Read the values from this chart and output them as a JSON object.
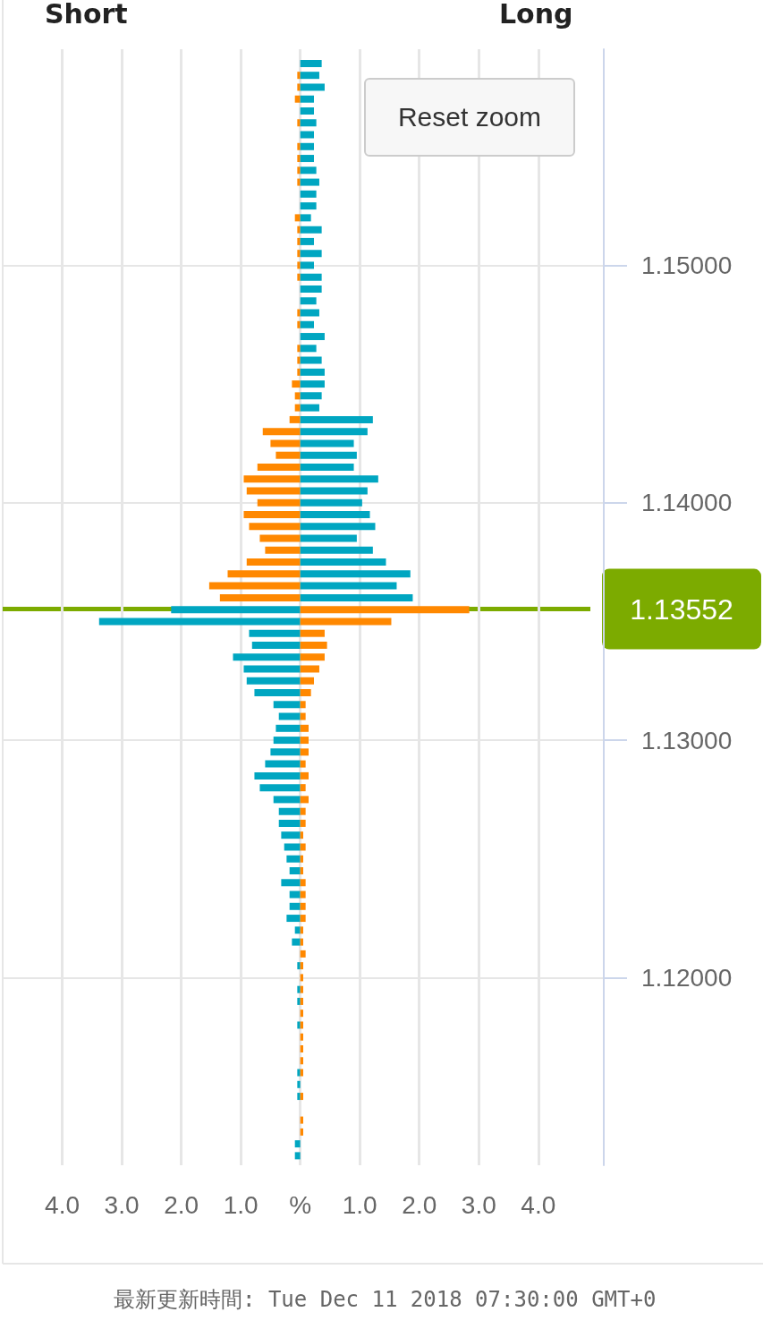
{
  "chart_data": {
    "type": "bar",
    "orientation": "horizontal",
    "grid": true,
    "stacked": true,
    "x": [
      1.1585,
      1.158,
      1.1575,
      1.157,
      1.1565,
      1.156,
      1.1555,
      1.155,
      1.1545,
      1.154,
      1.1535,
      1.153,
      1.1525,
      1.152,
      1.1515,
      1.151,
      1.1505,
      1.15,
      1.1495,
      1.149,
      1.1485,
      1.148,
      1.1475,
      1.147,
      1.1465,
      1.146,
      1.1455,
      1.145,
      1.1445,
      1.144,
      1.1435,
      1.143,
      1.1425,
      1.142,
      1.1415,
      1.141,
      1.1405,
      1.14,
      1.1395,
      1.139,
      1.1385,
      1.138,
      1.1375,
      1.137,
      1.1365,
      1.136,
      1.1355,
      1.135,
      1.1345,
      1.134,
      1.1335,
      1.133,
      1.1325,
      1.132,
      1.1315,
      1.131,
      1.1305,
      1.13,
      1.1295,
      1.129,
      1.1285,
      1.128,
      1.1275,
      1.127,
      1.1265,
      1.126,
      1.1255,
      1.125,
      1.1245,
      1.124,
      1.1235,
      1.123,
      1.1225,
      1.122,
      1.1215,
      1.121,
      1.1205,
      1.12,
      1.1195,
      1.119,
      1.1185,
      1.118,
      1.1175,
      1.117,
      1.1165,
      1.116,
      1.1155,
      1.115,
      1.1145,
      1.114,
      1.1135,
      1.113,
      1.1125
    ],
    "series": [
      {
        "values": [
          0,
          -0.05,
          -0.05,
          -0.09,
          0,
          -0.05,
          0,
          -0.05,
          -0.05,
          -0.05,
          -0.05,
          0,
          0,
          -0.09,
          -0.05,
          -0.05,
          -0.05,
          -0.05,
          -0.05,
          0,
          0,
          -0.05,
          -0.05,
          0,
          -0.05,
          -0.05,
          -0.05,
          -0.14,
          -0.09,
          -0.09,
          -0.18,
          -0.63,
          -0.5,
          -0.41,
          -0.72,
          -0.95,
          -0.9,
          -0.72,
          -0.95,
          -0.86,
          -0.68,
          -0.59,
          -0.9,
          -1.22,
          -1.53,
          -1.35,
          -2.17,
          -3.38,
          -0.86,
          -0.81,
          -1.13,
          -0.95,
          -0.9,
          -0.77,
          -0.45,
          -0.36,
          -0.41,
          -0.45,
          -0.5,
          -0.59,
          -0.77,
          -0.68,
          -0.45,
          -0.36,
          -0.36,
          -0.32,
          -0.27,
          -0.23,
          -0.18,
          -0.32,
          -0.18,
          -0.18,
          -0.23,
          -0.09,
          -0.14,
          0,
          -0.05,
          0,
          -0.05,
          -0.05,
          0,
          -0.05,
          0,
          0,
          0,
          -0.05,
          -0.05,
          -0.05,
          0,
          0,
          0,
          -0.09,
          -0.09
        ],
        "colors": [
          "#ff8800",
          "#ff8800",
          "#ff8800",
          "#ff8800",
          "#ff8800",
          "#ff8800",
          "#ff8800",
          "#ff8800",
          "#ff8800",
          "#ff8800",
          "#ff8800",
          "#ff8800",
          "#ff8800",
          "#ff8800",
          "#ff8800",
          "#ff8800",
          "#ff8800",
          "#ff8800",
          "#ff8800",
          "#ff8800",
          "#ff8800",
          "#ff8800",
          "#ff8800",
          "#ff8800",
          "#ff8800",
          "#ff8800",
          "#ff8800",
          "#ff8800",
          "#ff8800",
          "#ff8800",
          "#ff8800",
          "#ff8800",
          "#ff8800",
          "#ff8800",
          "#ff8800",
          "#ff8800",
          "#ff8800",
          "#ff8800",
          "#ff8800",
          "#ff8800",
          "#ff8800",
          "#ff8800",
          "#ff8800",
          "#ff8800",
          "#ff8800",
          "#ff8800",
          "#00a6c1",
          "#00a6c1",
          "#00a6c1",
          "#00a6c1",
          "#00a6c1",
          "#00a6c1",
          "#00a6c1",
          "#00a6c1",
          "#00a6c1",
          "#00a6c1",
          "#00a6c1",
          "#00a6c1",
          "#00a6c1",
          "#00a6c1",
          "#00a6c1",
          "#00a6c1",
          "#00a6c1",
          "#00a6c1",
          "#00a6c1",
          "#00a6c1",
          "#00a6c1",
          "#00a6c1",
          "#00a6c1",
          "#00a6c1",
          "#00a6c1",
          "#00a6c1",
          "#00a6c1",
          "#00a6c1",
          "#00a6c1",
          "#00a6c1",
          "#00a6c1",
          "#00a6c1",
          "#00a6c1",
          "#00a6c1",
          "#00a6c1",
          "#00a6c1",
          "#00a6c1",
          "#00a6c1",
          "#00a6c1",
          "#00a6c1",
          "#00a6c1",
          "#00a6c1",
          "#00a6c1",
          "#00a6c1",
          "#00a6c1",
          "#00a6c1",
          "#00a6c1"
        ]
      },
      {
        "values": [
          0.36,
          0.32,
          0.41,
          0.23,
          0.23,
          0.27,
          0.23,
          0.23,
          0.23,
          0.27,
          0.32,
          0.27,
          0.27,
          0.18,
          0.36,
          0.23,
          0.36,
          0.23,
          0.36,
          0.36,
          0.27,
          0.32,
          0.23,
          0.41,
          0.27,
          0.36,
          0.41,
          0.41,
          0.36,
          0.32,
          1.22,
          1.13,
          0.9,
          0.95,
          0.9,
          1.31,
          1.13,
          1.04,
          1.17,
          1.26,
          0.95,
          1.22,
          1.44,
          1.85,
          1.62,
          1.89,
          2.84,
          1.53,
          0.41,
          0.45,
          0.41,
          0.32,
          0.23,
          0.18,
          0.09,
          0.09,
          0.14,
          0.14,
          0.14,
          0.09,
          0.14,
          0.09,
          0.14,
          0.09,
          0.09,
          0.05,
          0.09,
          0.05,
          0.05,
          0.09,
          0.09,
          0.09,
          0.09,
          0.05,
          0.05,
          0.09,
          0.05,
          0.05,
          0.05,
          0.05,
          0.05,
          0.05,
          0.05,
          0.05,
          0.05,
          0.05,
          0,
          0.05,
          0,
          0.05,
          0.05,
          0,
          0
        ],
        "colors": [
          "#00a6c1",
          "#00a6c1",
          "#00a6c1",
          "#00a6c1",
          "#00a6c1",
          "#00a6c1",
          "#00a6c1",
          "#00a6c1",
          "#00a6c1",
          "#00a6c1",
          "#00a6c1",
          "#00a6c1",
          "#00a6c1",
          "#00a6c1",
          "#00a6c1",
          "#00a6c1",
          "#00a6c1",
          "#00a6c1",
          "#00a6c1",
          "#00a6c1",
          "#00a6c1",
          "#00a6c1",
          "#00a6c1",
          "#00a6c1",
          "#00a6c1",
          "#00a6c1",
          "#00a6c1",
          "#00a6c1",
          "#00a6c1",
          "#00a6c1",
          "#00a6c1",
          "#00a6c1",
          "#00a6c1",
          "#00a6c1",
          "#00a6c1",
          "#00a6c1",
          "#00a6c1",
          "#00a6c1",
          "#00a6c1",
          "#00a6c1",
          "#00a6c1",
          "#00a6c1",
          "#00a6c1",
          "#00a6c1",
          "#00a6c1",
          "#00a6c1",
          "#ff8800",
          "#ff8800",
          "#ff8800",
          "#ff8800",
          "#ff8800",
          "#ff8800",
          "#ff8800",
          "#ff8800",
          "#ff8800",
          "#ff8800",
          "#ff8800",
          "#ff8800",
          "#ff8800",
          "#ff8800",
          "#ff8800",
          "#ff8800",
          "#ff8800",
          "#ff8800",
          "#ff8800",
          "#ff8800",
          "#ff8800",
          "#ff8800",
          "#ff8800",
          "#ff8800",
          "#ff8800",
          "#ff8800",
          "#ff8800",
          "#ff8800",
          "#ff8800",
          "#ff8800",
          "#ff8800",
          "#ff8800",
          "#ff8800",
          "#ff8800",
          "#ff8800",
          "#ff8800",
          "#ff8800",
          "#ff8800",
          "#ff8800",
          "#ff8800",
          "#ff8800",
          "#ff8800",
          "#ff8800",
          "#ff8800",
          "#ff8800",
          "#ff8800",
          "#ff8800"
        ]
      }
    ],
    "xlim": [
      -5,
      5.1
    ],
    "xticks": [
      {
        "value": -4,
        "label": "4.0"
      },
      {
        "value": -3,
        "label": "3.0"
      },
      {
        "value": -2,
        "label": "2.0"
      },
      {
        "value": -1,
        "label": "1.0"
      },
      {
        "value": 0,
        "label": "%"
      },
      {
        "value": 1,
        "label": "1.0"
      },
      {
        "value": 2,
        "label": "2.0"
      },
      {
        "value": 3,
        "label": "3.0"
      },
      {
        "value": 4,
        "label": "4.0"
      }
    ],
    "ylim": [
      1.1121,
      1.1591
    ],
    "yticks": [
      {
        "value": 1.12,
        "label": "1.12000"
      },
      {
        "value": 1.13,
        "label": "1.13000"
      },
      {
        "value": 1.14,
        "label": "1.14000"
      },
      {
        "value": 1.15,
        "label": "1.15000"
      }
    ],
    "ref_lines": [
      {
        "axis": "y",
        "value": 1.13552,
        "label": "1.13552",
        "color": "#7cab00"
      }
    ],
    "annotations": [
      "Short",
      "Long",
      "Reset zoom",
      "最新更新時間: Tue Dec 11 2018 07:30:00 GMT+0"
    ]
  }
}
